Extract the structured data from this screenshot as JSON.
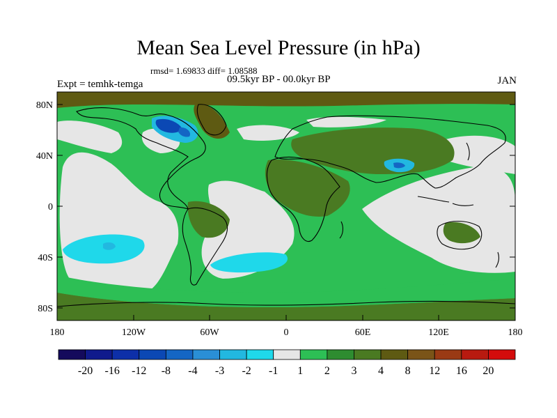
{
  "title": "Mean Sea Level Pressure (in hPa)",
  "stats": "rmsd= 1.69833 diff= 1.08588",
  "period": "09.5kyr BP - 00.0kyr BP",
  "experiment": "Expt = temhk-temga",
  "month": "JAN",
  "axes": {
    "lat_ticks": [
      "80N",
      "40N",
      "0",
      "40S",
      "80S"
    ],
    "lon_ticks": [
      "180",
      "120W",
      "60W",
      "0",
      "60E",
      "120E",
      "180"
    ]
  },
  "colorbar": {
    "labels": [
      "-20",
      "-16",
      "-12",
      "-8",
      "-4",
      "-3",
      "-2",
      "-1",
      "1",
      "2",
      "3",
      "4",
      "8",
      "12",
      "16",
      "20"
    ],
    "colors": [
      "#140a5c",
      "#101a8c",
      "#0d2fa8",
      "#0b48b4",
      "#1466c4",
      "#2a8fd6",
      "#22b8e0",
      "#1fd8ea",
      "#e6e6e6",
      "#2dbf55",
      "#2e8c30",
      "#4a7a22",
      "#5e5a12",
      "#7a5418",
      "#9a3a14",
      "#b81a10",
      "#d40c0c"
    ]
  },
  "palette": {
    "neutral": "#e6e6e6",
    "green": "#2dbf55",
    "darkgreen": "#2e8c30",
    "olive": "#4a7a22",
    "brown": "#5e5a12",
    "cyan": "#1fd8ea",
    "lightblue": "#22b8e0",
    "blue": "#1466c4",
    "darkblue": "#0b48b4"
  }
}
